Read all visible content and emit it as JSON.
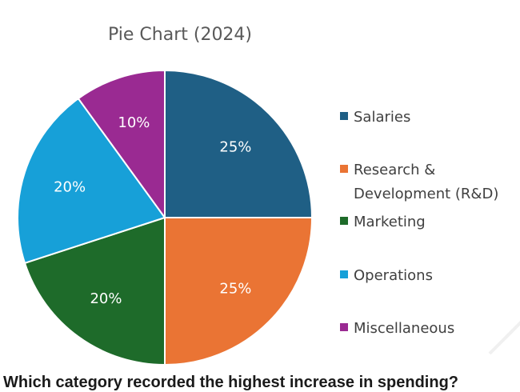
{
  "chart_data": {
    "type": "pie",
    "title": "Pie Chart (2024)",
    "categories": [
      "Salaries",
      "Research & Development (R&D)",
      "Marketing",
      "Operations",
      "Miscellaneous"
    ],
    "values": [
      25,
      25,
      20,
      20,
      10
    ],
    "value_labels": [
      "25%",
      "25%",
      "20%",
      "20%",
      "10%"
    ],
    "legend_lines": [
      [
        "Salaries"
      ],
      [
        "Research &",
        "Development (R&D)"
      ],
      [
        "Marketing"
      ],
      [
        "Operations"
      ],
      [
        "Miscellaneous"
      ]
    ],
    "colors": [
      "#1f5f85",
      "#ea7434",
      "#1e6b2a",
      "#17a0d8",
      "#9a2a92"
    ],
    "start_angle_deg": 0,
    "direction": "clockwise",
    "legend_position": "right"
  },
  "footer": {
    "text": "Which category recorded the highest increase in spending?"
  }
}
